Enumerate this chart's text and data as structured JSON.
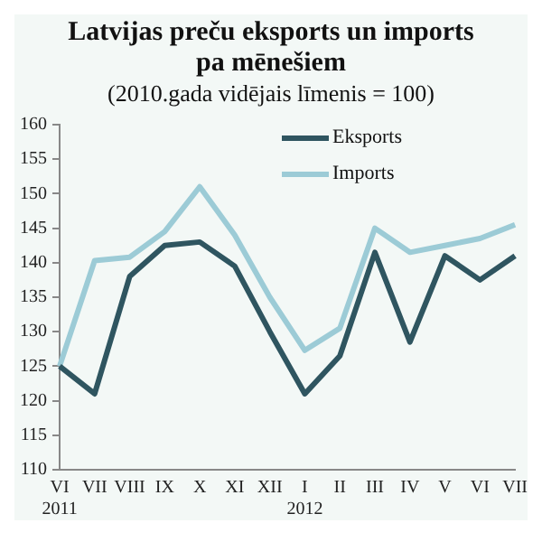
{
  "chart_data": {
    "type": "line",
    "title": "Latvijas preču eksports un imports pa mēnešiem",
    "subtitle": "(2010.gada vidējais līmenis = 100)",
    "categories": [
      "VI\n2011",
      "VII",
      "VIII",
      "IX",
      "X",
      "XI",
      "XII",
      "I\n2012",
      "II",
      "III",
      "IV",
      "V",
      "VI",
      "VII"
    ],
    "series": [
      {
        "name": "Eksports",
        "color": "#2f5560",
        "values": [
          125,
          121,
          138,
          142.5,
          143,
          139.5,
          130,
          121,
          126.5,
          141.5,
          128.5,
          141,
          137.5,
          141
        ]
      },
      {
        "name": "Imports",
        "color": "#9ccbd6",
        "values": [
          125,
          140.3,
          140.8,
          144.5,
          151,
          144,
          135,
          127.3,
          130.5,
          145,
          141.5,
          142.5,
          143.5,
          145.5
        ]
      }
    ],
    "ylim": [
      110,
      160
    ],
    "yticks": [
      110,
      115,
      120,
      125,
      130,
      135,
      140,
      145,
      150,
      155,
      160
    ],
    "grid": false,
    "legend": "top right",
    "marker": "none",
    "line_style": "solid"
  }
}
